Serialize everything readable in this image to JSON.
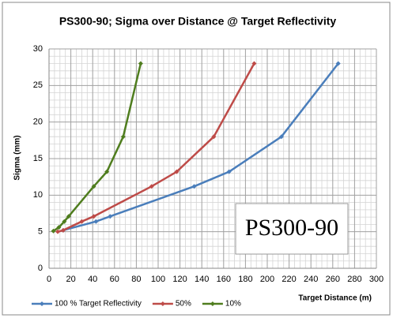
{
  "chart_data": {
    "type": "line",
    "title": "PS300-90; Sigma over Distance @ Target Reflectivity",
    "xlabel": "Target Distance (m)",
    "ylabel": "Sigma (mm)",
    "annotation": "PS300-90",
    "xlim": [
      0,
      300
    ],
    "xticks": [
      0,
      20,
      40,
      60,
      80,
      100,
      120,
      140,
      160,
      180,
      200,
      220,
      240,
      260,
      280,
      300
    ],
    "ylim": [
      0,
      30
    ],
    "yticks": [
      0,
      5,
      10,
      15,
      20,
      25,
      30
    ],
    "grid": true,
    "minor_grid": true,
    "legend": "bottom",
    "series": [
      {
        "name": "100 % Target Reflectivity",
        "color": "#4a7ebb",
        "x": [
          13,
          43,
          56,
          133,
          165,
          213,
          265
        ],
        "values": [
          5.2,
          6.4,
          7.1,
          11.2,
          13.2,
          18,
          28
        ]
      },
      {
        "name": "50%",
        "color": "#be4b48",
        "x": [
          8,
          13,
          30,
          41,
          94,
          117,
          151,
          188
        ],
        "values": [
          5.0,
          5.2,
          6.4,
          7.1,
          11.2,
          13.2,
          18,
          28
        ]
      },
      {
        "name": "10%",
        "color": "#4f7d1e",
        "x": [
          4,
          9,
          14,
          18,
          41,
          53,
          68,
          84
        ],
        "values": [
          5.1,
          5.6,
          6.4,
          7.1,
          11.2,
          13.2,
          18,
          28
        ]
      }
    ]
  }
}
